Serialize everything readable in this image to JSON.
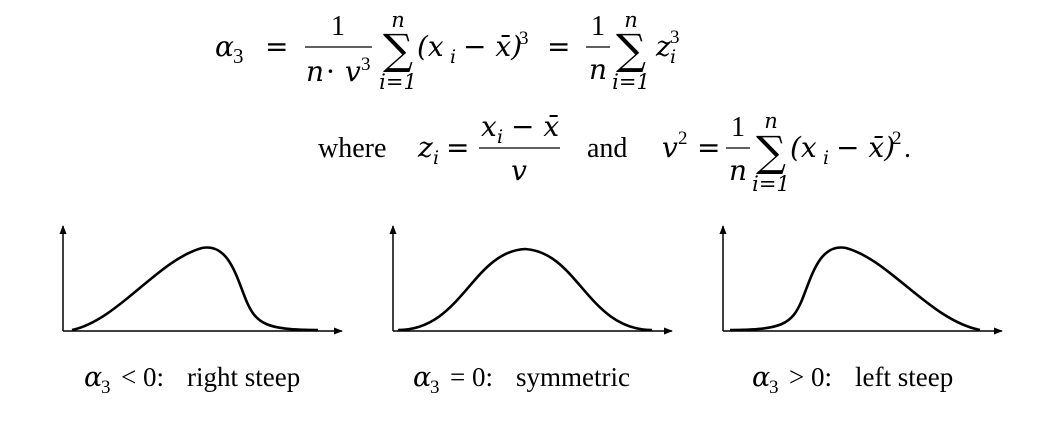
{
  "formula": {
    "lhs": "α",
    "lhs_sub": "3",
    "eq": "=",
    "frac1_num": "1",
    "frac1_den_n": "n",
    "frac1_den_dot": "·",
    "frac1_den_v": "v",
    "frac1_den_exp": "3",
    "sum_symbol": "∑",
    "sum_upper": "n",
    "sum_lower": "i=1",
    "term1": "(x",
    "term1_sub": "i",
    "term1_mid": "− x̄)",
    "term1_exp": "3",
    "frac2_num": "1",
    "frac2_den": "n",
    "z": "z",
    "z_sub": "i",
    "z_exp": "3"
  },
  "definitions": {
    "where": "where",
    "z": "z",
    "z_sub": "i",
    "eq": "=",
    "frac_num_x": "x",
    "frac_num_sub": "i",
    "frac_num_rest": "− x̄",
    "frac_den": "v",
    "and": "and",
    "v": "v",
    "v_exp": "2",
    "frac2_num": "1",
    "frac2_den": "n",
    "sum_upper": "n",
    "sum_lower": "i=1",
    "term": "(x",
    "term_sub": "i",
    "term_mid": "− x̄)",
    "term_exp": "2",
    "period": "."
  },
  "plots": [
    {
      "alpha": "α",
      "alpha_sub": "3",
      "relation": "< 0:",
      "desc": "right steep",
      "skew": "negative"
    },
    {
      "alpha": "α",
      "alpha_sub": "3",
      "relation": "= 0:",
      "desc": "symmetric",
      "skew": "zero"
    },
    {
      "alpha": "α",
      "alpha_sub": "3",
      "relation": "> 0:",
      "desc": "left steep",
      "skew": "positive"
    }
  ]
}
